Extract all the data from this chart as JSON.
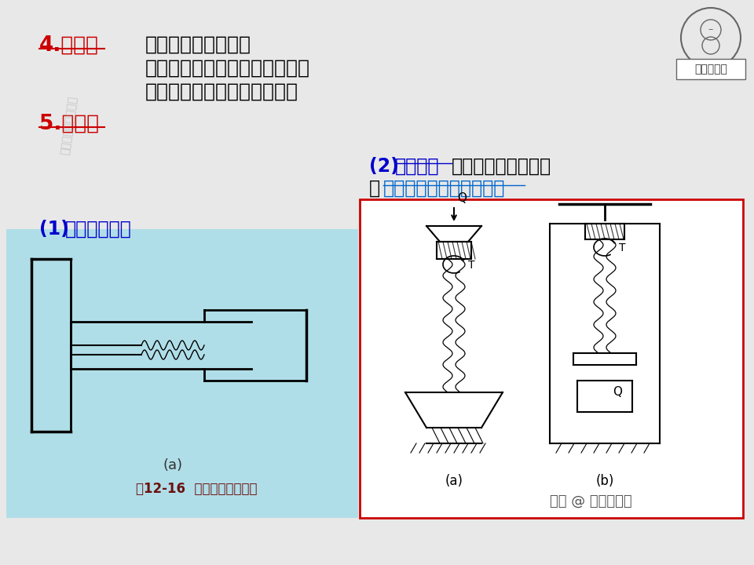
{
  "bg_color": "#e8e8e8",
  "title_color": "#cc0000",
  "text_color": "#000000",
  "blue_text_color": "#0000cc",
  "blue_link_color": "#0066cc",
  "left_panel_bg": "#aadde8",
  "right_panel_border": "#cc0000",
  "right_panel_bg": "#ffffff",
  "section4_label": "4.特点：",
  "section4_lines": [
    "可实现很高的精度；",
    "降速比大（适于微调、精读）；",
    "传动平稳，能自锁；效率低；"
  ],
  "section5_label": "5.类型：",
  "sub1_prefix": "(1) ",
  "sub1_name": "示数螺旋传动",
  "sub2_prefix": "(2) ",
  "sub2_name": "传力螺旋",
  "sub2_rest": "：以传递动力为主；",
  "sub2_link_prefix": "如",
  "sub2_link": "千斤顶、起重器、压力机",
  "fig_label": "图12-16  螺旋千分尺示意图",
  "sub1_a_label": "(a)",
  "right_a_label": "(a)",
  "right_b_label": "(b)",
  "watermark": "头条 @ 一位工程师",
  "logo_text": "一位工程师",
  "diagonal_text": "头条号：一位工程师"
}
